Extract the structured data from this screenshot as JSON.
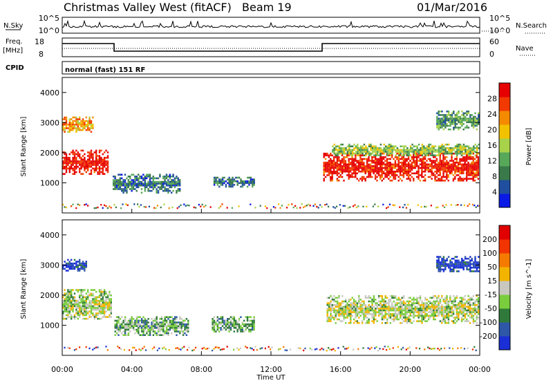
{
  "header": {
    "radar_name": "Christmas Valley West (fitACF)",
    "beam": "Beam 19",
    "date": "01/Mar/2016",
    "cpid_label": "CPID",
    "cpid_value": "normal (fast) 151 RF"
  },
  "nsky_panel": {
    "left_label": "N.Sky",
    "right_label": "N.Search",
    "left_ticks": [
      "10^5",
      "10^0"
    ],
    "right_ticks": [
      "10^5",
      "10^0"
    ]
  },
  "freq_panel": {
    "left_label_1": "Freq.",
    "left_label_2": "[MHz]",
    "right_label": "Nave",
    "left_ticks": [
      "18",
      "8"
    ],
    "right_ticks": [
      "60",
      "0"
    ]
  },
  "colors": {
    "power_scale": [
      "#0a1ae6",
      "#1f4f9e",
      "#3a7a4a",
      "#58a85a",
      "#a8d24a",
      "#f2c200",
      "#f58a00",
      "#f23a00",
      "#e60000"
    ],
    "velocity_scale": [
      "#1a2fd6",
      "#2e57a8",
      "#2f7a3a",
      "#7acd3c",
      "#c8c8c0",
      "#f2b400",
      "#f57a00",
      "#f23400",
      "#e00000"
    ]
  },
  "chart_data": [
    {
      "type": "heatmap",
      "panel": "power",
      "xlabel": "",
      "ylabel": "Slant Range [km]",
      "xlim": [
        0,
        24
      ],
      "ylim": [
        0,
        4500
      ],
      "y_ticks": [
        "1000",
        "2000",
        "3000",
        "4000"
      ],
      "colorbar": {
        "label": "Power [dB]",
        "tick_labels": [
          "28",
          "24",
          "20",
          "16",
          "12",
          "8",
          "4"
        ]
      },
      "regions": [
        {
          "t0": 0.0,
          "t1": 2.6,
          "r0": 1300,
          "r1": 2100,
          "level": 0.95
        },
        {
          "t0": 0.0,
          "t1": 1.8,
          "r0": 2700,
          "r1": 3200,
          "level": 0.7
        },
        {
          "t0": 2.9,
          "t1": 6.8,
          "r0": 700,
          "r1": 1300,
          "level": 0.25
        },
        {
          "t0": 8.7,
          "t1": 11.0,
          "r0": 900,
          "r1": 1200,
          "level": 0.25
        },
        {
          "t0": 15.0,
          "t1": 23.9,
          "r0": 1100,
          "r1": 2000,
          "level": 0.92
        },
        {
          "t0": 15.5,
          "t1": 23.9,
          "r0": 1900,
          "r1": 2300,
          "level": 0.45
        },
        {
          "t0": 21.5,
          "t1": 23.9,
          "r0": 2800,
          "r1": 3400,
          "level": 0.35
        }
      ]
    },
    {
      "type": "heatmap",
      "panel": "velocity",
      "xlabel": "Time UT",
      "ylabel": "Slant Range [km]",
      "xlim": [
        0,
        24
      ],
      "ylim": [
        0,
        4500
      ],
      "x_ticks": [
        "00:00",
        "04:00",
        "08:00",
        "12:00",
        "16:00",
        "20:00",
        "00:00"
      ],
      "y_ticks": [
        "1000",
        "2000",
        "3000",
        "4000"
      ],
      "colorbar": {
        "label": "Velocity [m s^-1]",
        "tick_labels": [
          "200",
          "100",
          "50",
          "15",
          "-15",
          "-50",
          "-100",
          "-200"
        ]
      },
      "regions": [
        {
          "t0": 0.0,
          "t1": 2.8,
          "r0": 1200,
          "r1": 2200,
          "level": 0.45
        },
        {
          "t0": 0.0,
          "t1": 1.4,
          "r0": 2800,
          "r1": 3200,
          "level": 0.1
        },
        {
          "t0": 3.0,
          "t1": 7.2,
          "r0": 700,
          "r1": 1300,
          "level": 0.35
        },
        {
          "t0": 8.6,
          "t1": 11.0,
          "r0": 800,
          "r1": 1300,
          "level": 0.35
        },
        {
          "t0": 15.2,
          "t1": 23.9,
          "r0": 1100,
          "r1": 2000,
          "level": 0.47
        },
        {
          "t0": 21.5,
          "t1": 23.9,
          "r0": 2800,
          "r1": 3300,
          "level": 0.1
        }
      ]
    }
  ]
}
